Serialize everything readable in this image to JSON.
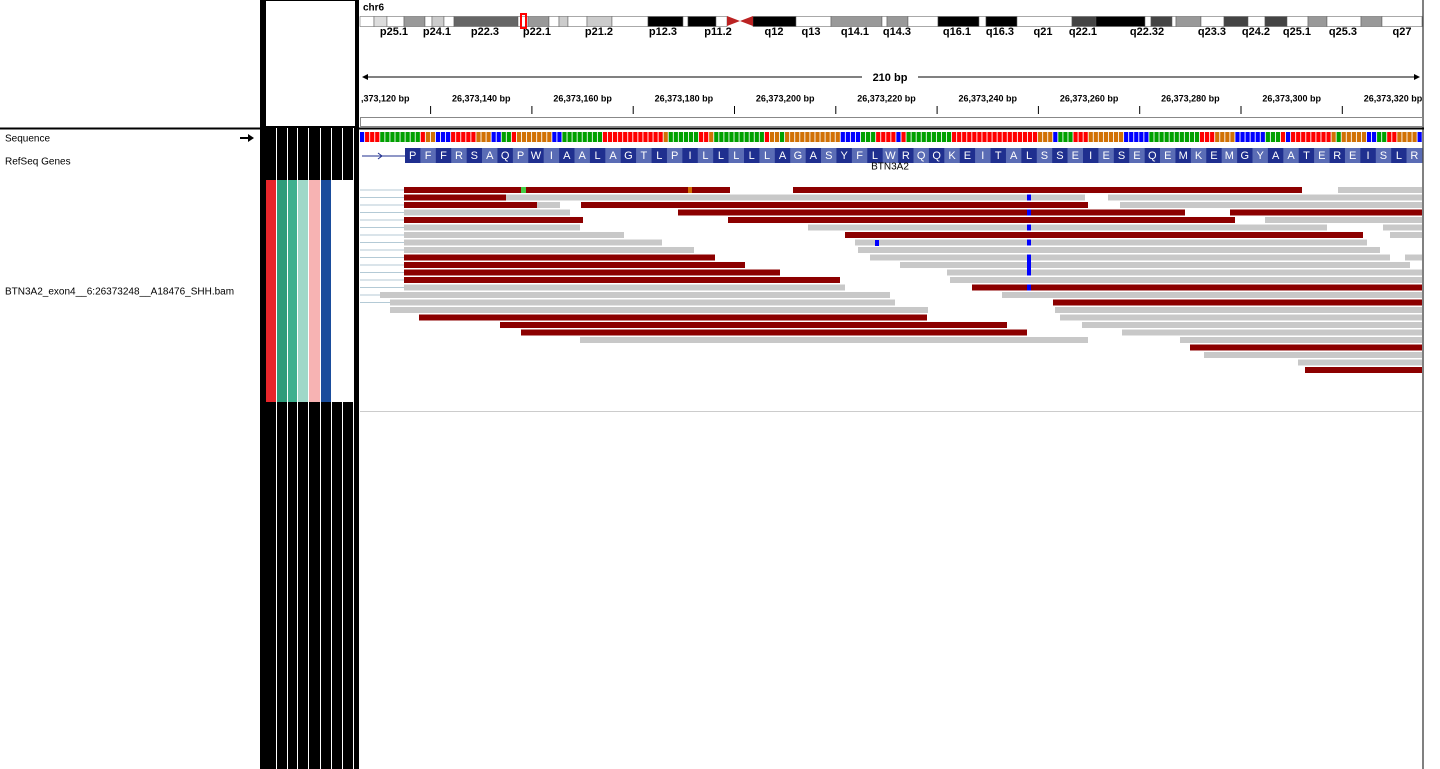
{
  "header": {
    "chromosome": "chr6",
    "cytobands": [
      "p25.1",
      "p24.1",
      "p22.3",
      "p22.1",
      "p21.2",
      "p12.3",
      "p11.2",
      "q12",
      "q13",
      "q14.1",
      "q14.3",
      "q16.1",
      "q16.3",
      "q21",
      "q22.1",
      "q22.32",
      "q23.3",
      "q24.2",
      "q25.1",
      "q25.3",
      "q27"
    ],
    "span": "210 bp",
    "ruler_labels": [
      ",373,120 bp",
      "26,373,140 bp",
      "26,373,160 bp",
      "26,373,180 bp",
      "26,373,200 bp",
      "26,373,220 bp",
      "26,373,240 bp",
      "26,373,260 bp",
      "26,373,280 bp",
      "26,373,300 bp",
      "26,373,320 bp"
    ]
  },
  "tracks": {
    "sequence": "Sequence",
    "refseq": "RefSeq Genes",
    "bam": "BTN3A2_exon4__6:26373248__A18476_SHH.bam"
  },
  "gene": {
    "name": "BTN3A2",
    "amino_acids": [
      "P",
      "F",
      "F",
      "R",
      "S",
      "A",
      "Q",
      "P",
      "W",
      "I",
      "A",
      "A",
      "L",
      "A",
      "G",
      "T",
      "L",
      "P",
      "I",
      "L",
      "L",
      "L",
      "L",
      "L",
      "A",
      "G",
      "A",
      "S",
      "Y",
      "F",
      "L",
      "W",
      "R",
      "Q",
      "Q",
      "K",
      "E",
      "I",
      "T",
      "A",
      "L",
      "S",
      "S",
      "E",
      "I",
      "E",
      "S",
      "E",
      "Q",
      "E",
      "M",
      "K",
      "E",
      "M",
      "G",
      "Y",
      "A",
      "A",
      "T",
      "E",
      "R",
      "E",
      "I",
      "S",
      "L",
      "R"
    ]
  }
}
